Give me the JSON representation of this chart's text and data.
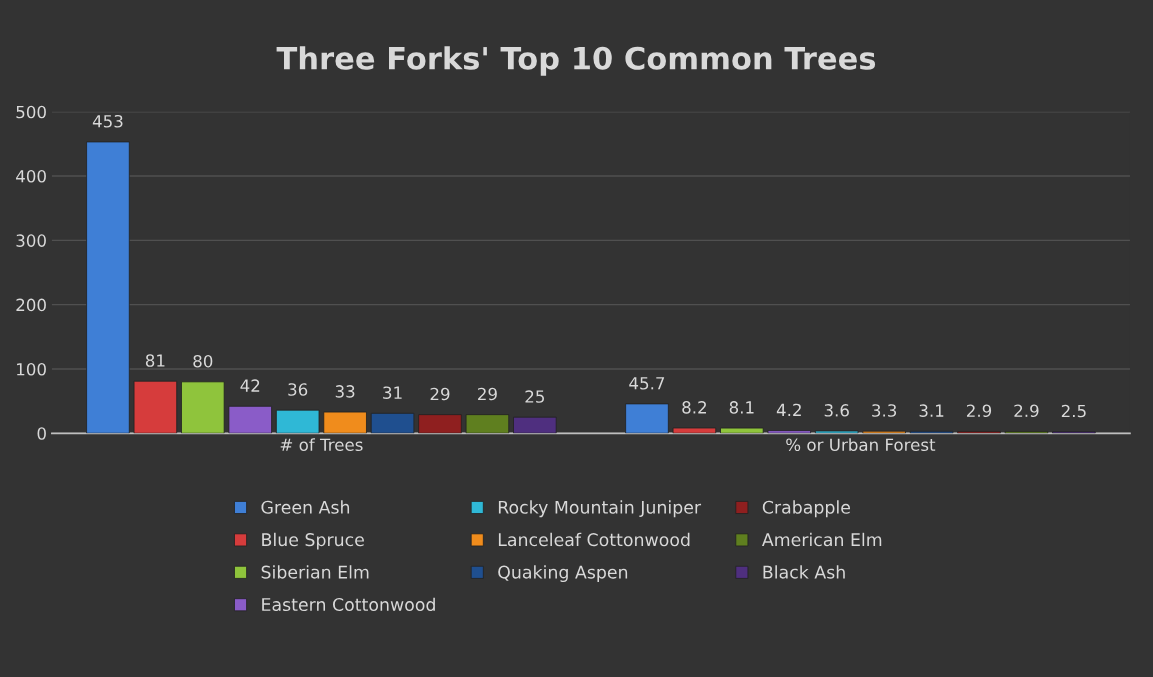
{
  "chart_data": {
    "type": "bar",
    "title": "Three Forks' Top 10 Common Trees",
    "categories": [
      "# of Trees",
      "% or Urban Forest"
    ],
    "series": [
      {
        "name": "Green Ash",
        "color": "#3f7fd6",
        "values": [
          453,
          45.7
        ]
      },
      {
        "name": "Blue Spruce",
        "color": "#d63c3c",
        "values": [
          81,
          8.2
        ]
      },
      {
        "name": "Siberian Elm",
        "color": "#8fc43c",
        "values": [
          80,
          8.1
        ]
      },
      {
        "name": "Eastern Cottonwood",
        "color": "#8a5cc8",
        "values": [
          42,
          4.2
        ]
      },
      {
        "name": "Rocky Mountain Juniper",
        "color": "#2fb8d6",
        "values": [
          36,
          3.6
        ]
      },
      {
        "name": "Lanceleaf Cottonwood",
        "color": "#f08c1c",
        "values": [
          33,
          3.3
        ]
      },
      {
        "name": "Quaking Aspen",
        "color": "#1f4f8f",
        "values": [
          31,
          3.1
        ]
      },
      {
        "name": "Crabapple",
        "color": "#8f1f1f",
        "values": [
          29,
          2.9
        ]
      },
      {
        "name": "American Elm",
        "color": "#5f7f1f",
        "values": [
          29,
          2.9
        ]
      },
      {
        "name": "Black Ash",
        "color": "#4f2f7f",
        "values": [
          25,
          2.5
        ]
      }
    ],
    "ylim": [
      0,
      500
    ],
    "yticks": [
      0,
      100,
      200,
      300,
      400,
      500
    ],
    "grid": "y",
    "legend": "bottom",
    "data_labels": true
  }
}
